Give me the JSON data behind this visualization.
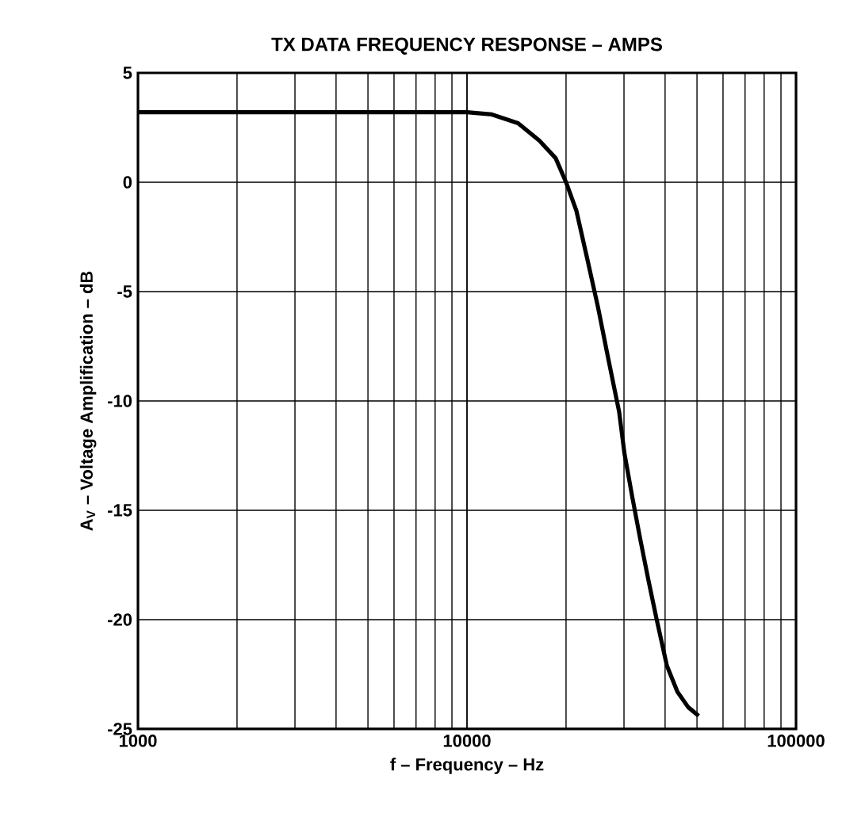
{
  "chart_data": {
    "type": "line",
    "title": "TX DATA FREQUENCY RESPONSE – AMPS",
    "xlabel": "f – Frequency – Hz",
    "ylabel": "A$_{V}$  – Voltage Amplification – dB",
    "log": "x",
    "grid": true,
    "marker": "none",
    "line_style": "solid",
    "xlim": [
      1000,
      100000
    ],
    "xticks": [
      1000,
      10000,
      100000
    ],
    "ylim": [
      -25,
      5
    ],
    "yticks": [
      -25,
      -20,
      -15,
      -10,
      -5,
      0,
      5
    ],
    "series": [
      {
        "color": "#000000",
        "x": [
          1000,
          5000,
          10000,
          11900,
          14300,
          16600,
          18600,
          20000,
          21500,
          23200,
          25000,
          26900,
          29000,
          30100,
          31800,
          33600,
          35600,
          37600,
          40500,
          43600,
          47000,
          50600
        ],
        "values": [
          3.2,
          3.2,
          3.2,
          3.1,
          2.7,
          1.9,
          1.1,
          0,
          -1.3,
          -3.5,
          -5.7,
          -8.1,
          -10.5,
          -12.4,
          -14.4,
          -16.3,
          -18.2,
          -19.9,
          -22.1,
          -23.3,
          -24.0,
          -24.4
        ]
      }
    ]
  }
}
